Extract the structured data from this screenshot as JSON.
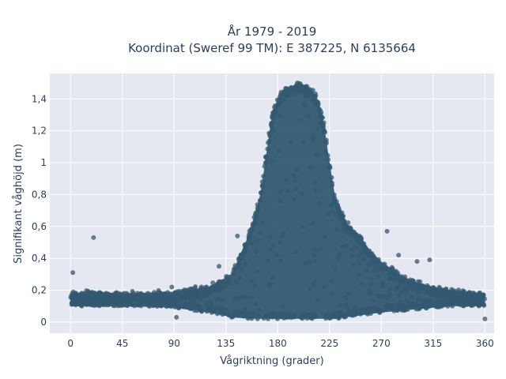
{
  "chart_data": {
    "type": "scatter",
    "title_line1": "År 1979 - 2019",
    "title_line2": "Koordinat (Sweref 99 TM): E 387225, N 6135664",
    "xlabel": "Vågriktning (grader)",
    "ylabel": "Signifikant våghöjd (m)",
    "xlim": [
      -18,
      368
    ],
    "ylim": [
      -0.07,
      1.56
    ],
    "xticks": [
      0,
      45,
      90,
      135,
      180,
      225,
      270,
      315,
      360
    ],
    "yticks": [
      0,
      0.2,
      0.4,
      0.6,
      0.8,
      1,
      1.2,
      1.4
    ],
    "ytick_labels": [
      "0",
      "0,2",
      "0,4",
      "0,6",
      "0,8",
      "1",
      "1,2",
      "1,4"
    ],
    "grid": true,
    "marker_color": "#335a70",
    "plot_bgcolor": "#e5e8f0",
    "envelope": {
      "x": [
        0,
        20,
        45,
        90,
        120,
        140,
        155,
        165,
        170,
        175,
        180,
        185,
        190,
        195,
        200,
        205,
        210,
        215,
        220,
        225,
        230,
        240,
        250,
        260,
        270,
        285,
        300,
        315,
        330,
        345,
        360
      ],
      "ymax": [
        0.18,
        0.19,
        0.18,
        0.19,
        0.22,
        0.3,
        0.55,
        0.8,
        1.05,
        1.3,
        1.4,
        1.45,
        1.47,
        1.49,
        1.5,
        1.48,
        1.45,
        1.4,
        1.25,
        1.0,
        0.78,
        0.62,
        0.55,
        0.45,
        0.38,
        0.3,
        0.25,
        0.22,
        0.2,
        0.19,
        0.18
      ],
      "ymin": [
        0.1,
        0.1,
        0.1,
        0.09,
        0.06,
        0.03,
        0.02,
        0.02,
        0.02,
        0.02,
        0.02,
        0.02,
        0.02,
        0.02,
        0.02,
        0.02,
        0.02,
        0.02,
        0.02,
        0.02,
        0.02,
        0.03,
        0.04,
        0.05,
        0.06,
        0.07,
        0.08,
        0.09,
        0.1,
        0.1,
        0.1
      ]
    },
    "outliers": [
      {
        "x": 20,
        "y": 0.53
      },
      {
        "x": 2,
        "y": 0.31
      },
      {
        "x": 312,
        "y": 0.39
      },
      {
        "x": 301,
        "y": 0.38
      },
      {
        "x": 145,
        "y": 0.54
      },
      {
        "x": 129,
        "y": 0.35
      },
      {
        "x": 92,
        "y": 0.03
      },
      {
        "x": 360,
        "y": 0.02
      },
      {
        "x": 285,
        "y": 0.42
      },
      {
        "x": 275,
        "y": 0.57
      },
      {
        "x": 88,
        "y": 0.22
      },
      {
        "x": 350,
        "y": 0.15
      }
    ]
  }
}
